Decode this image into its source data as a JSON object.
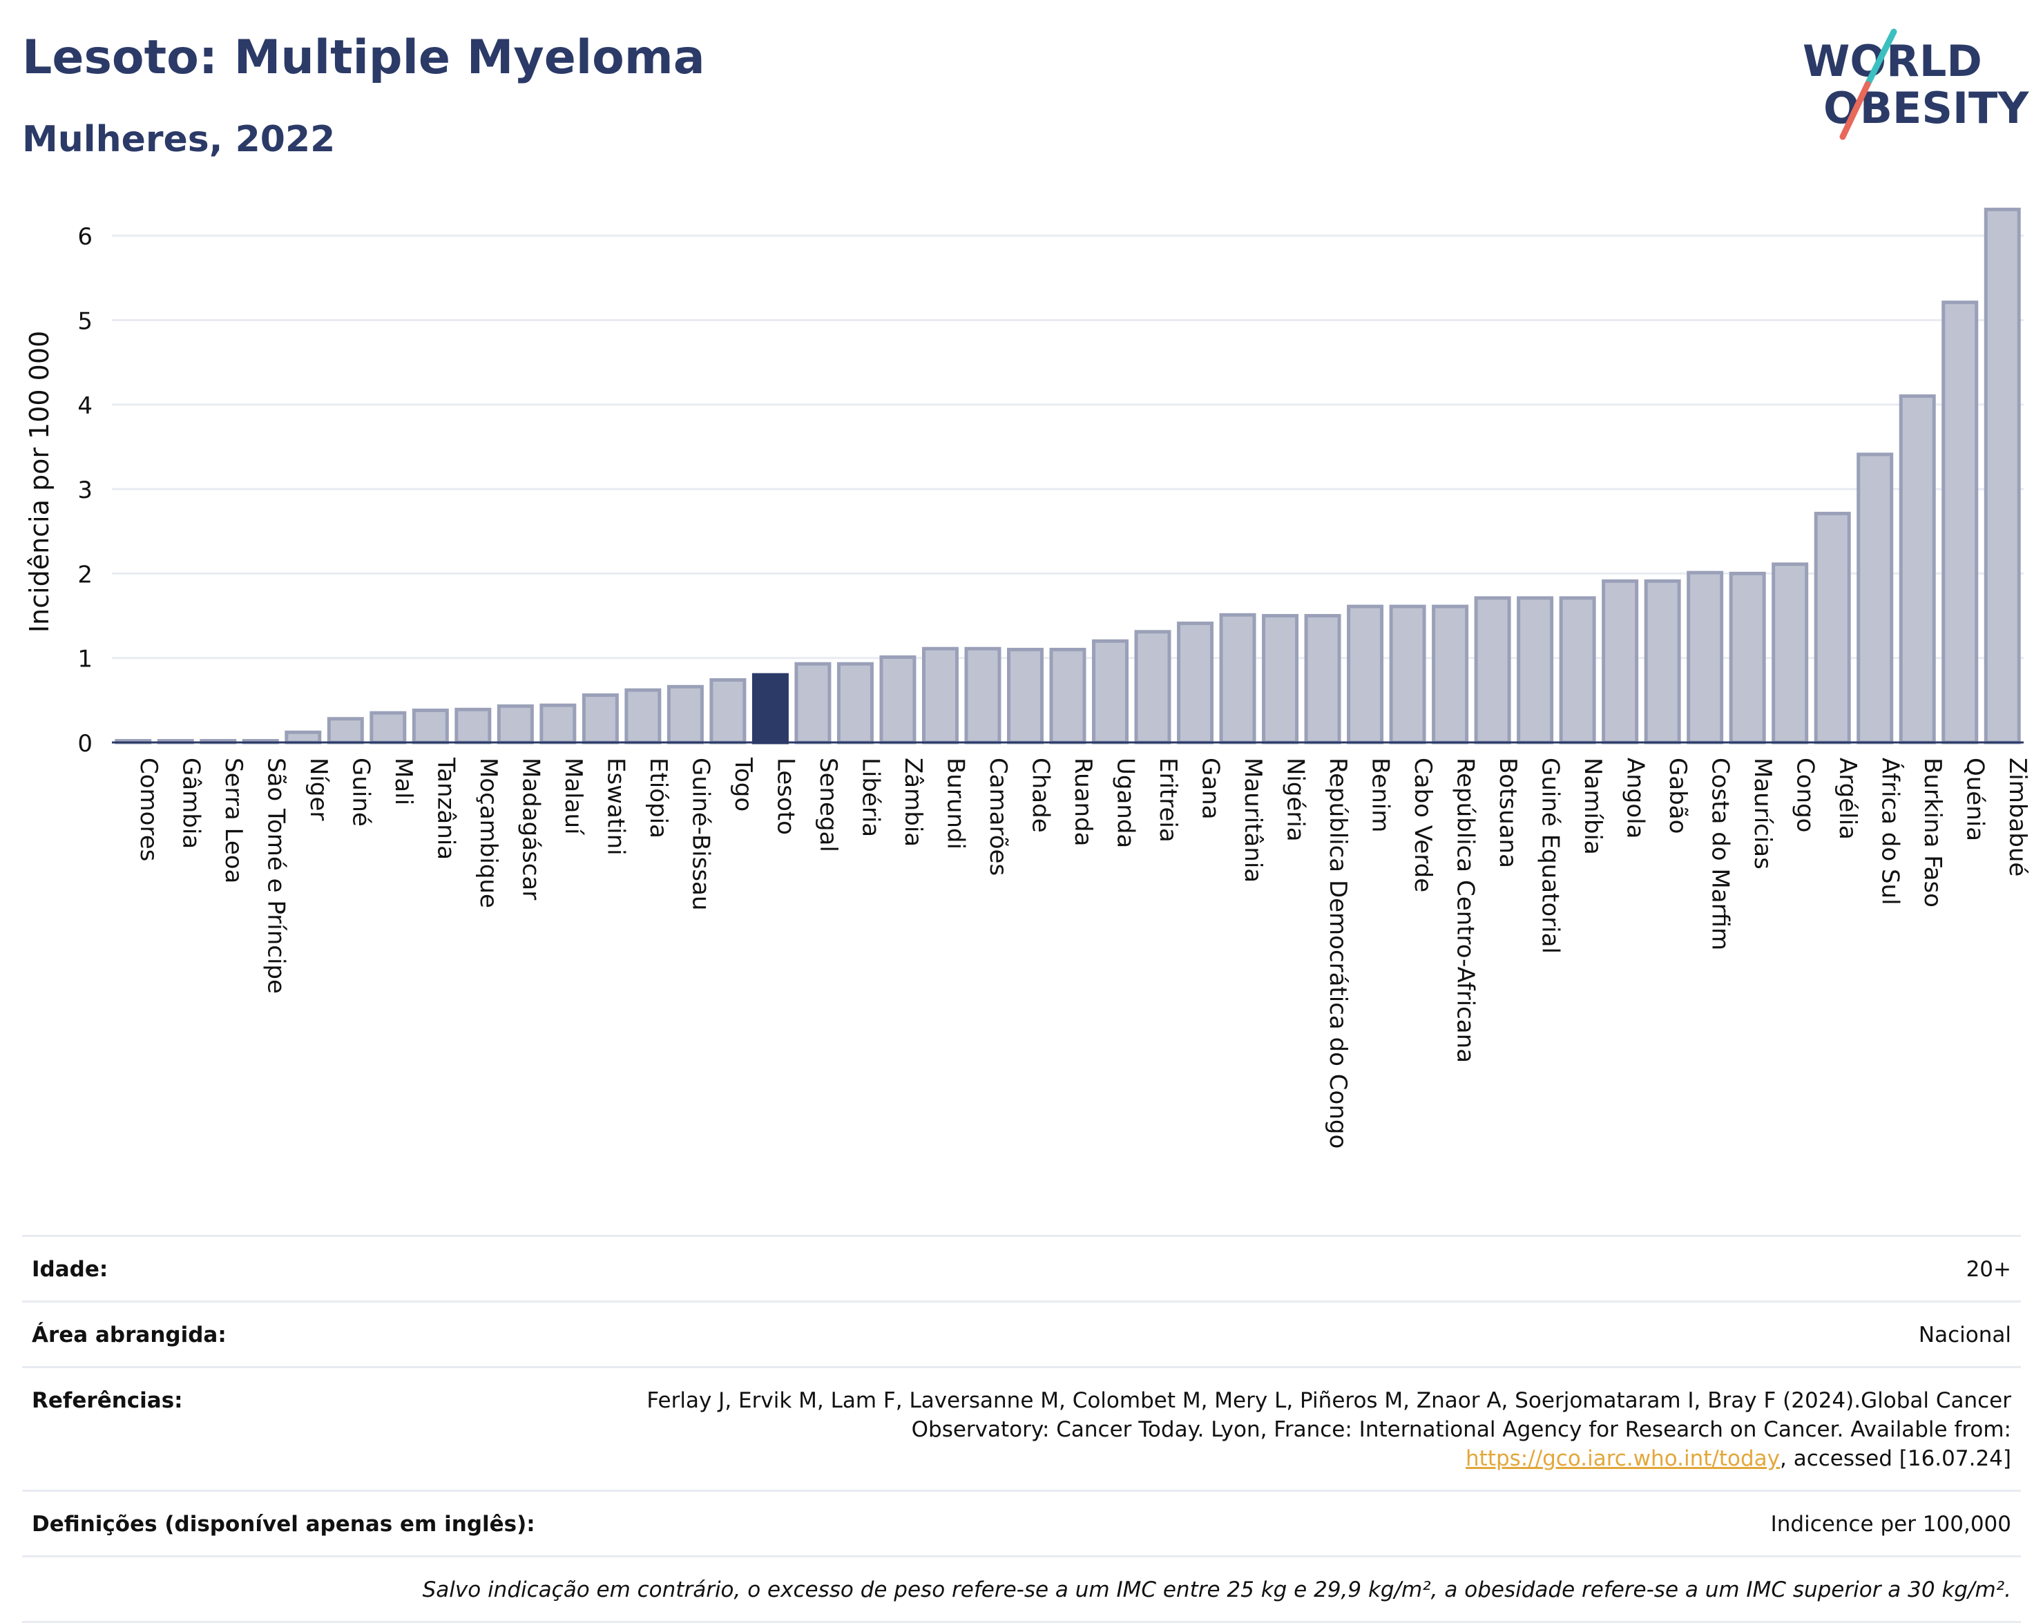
{
  "header": {
    "title": "Lesoto: Multiple Myeloma",
    "subtitle": "Mulheres, 2022",
    "logo_line1": "WORLD",
    "logo_line2": "OBESITY"
  },
  "colors": {
    "bar": "#bfc3d1",
    "bar_border": "#9aa0b8",
    "highlight": "#2b3a67",
    "grid": "#e8ebf1",
    "axis": "#2b3a67",
    "logo_teal": "#3bbfbf",
    "logo_red": "#e8685a"
  },
  "chart_data": {
    "type": "bar",
    "title": "",
    "xlabel": "",
    "ylabel": "Incidência por 100 000",
    "ylim": [
      0,
      6.5
    ],
    "yticks": [
      0,
      1,
      2,
      3,
      4,
      5,
      6
    ],
    "grid": true,
    "highlight": "Lesoto",
    "categories": [
      "Comores",
      "Gâmbia",
      "Serra Leoa",
      "São Tomé e Príncipe",
      "Níger",
      "Guiné",
      "Mali",
      "Tanzânia",
      "Moçambique",
      "Madagáscar",
      "Malauí",
      "Eswatini",
      "Etiópia",
      "Guiné-Bissau",
      "Togo",
      "Lesoto",
      "Senegal",
      "Libéria",
      "Zâmbia",
      "Burundi",
      "Camarões",
      "Chade",
      "Ruanda",
      "Uganda",
      "Eritreia",
      "Gana",
      "Mauritânia",
      "Nigéria",
      "República Democrática do Congo",
      "Benim",
      "Cabo Verde",
      "República Centro-Africana",
      "Botsuana",
      "Guiné Equatorial",
      "Namíbia",
      "Angola",
      "Gabão",
      "Costa do Marfim",
      "Maurícias",
      "Congo",
      "Argélia",
      "África do Sul",
      "Burkina Faso",
      "Quénia",
      "Zimbabué"
    ],
    "values": [
      0.02,
      0.02,
      0.02,
      0.02,
      0.12,
      0.28,
      0.35,
      0.38,
      0.39,
      0.43,
      0.44,
      0.56,
      0.62,
      0.66,
      0.74,
      0.8,
      0.93,
      0.93,
      1.01,
      1.11,
      1.11,
      1.1,
      1.1,
      1.2,
      1.31,
      1.41,
      1.51,
      1.5,
      1.5,
      1.61,
      1.61,
      1.61,
      1.71,
      1.71,
      1.71,
      1.91,
      1.91,
      2.01,
      2.0,
      2.11,
      2.71,
      3.41,
      4.1,
      5.21,
      6.31
    ]
  },
  "meta": {
    "age_label": "Idade:",
    "age_value": "20+",
    "area_label": "Área abrangida:",
    "area_value": "Nacional",
    "ref_label": "Referências:",
    "ref_text_1": "Ferlay J, Ervik M, Lam F, Laversanne M, Colombet M, Mery L, Piñeros M, Znaor A, Soerjomataram I, Bray F (2024).Global Cancer Observatory: Cancer Today. Lyon, France: International Agency for Research on Cancer. Available from: ",
    "ref_link": "https://gco.iarc.who.int/today",
    "ref_text_2": ", accessed [16.07.24]",
    "def_label": "Definições (disponível apenas em inglês):",
    "def_value": "Indicence per 100,000",
    "note": "Salvo indicação em contrário, o excesso de peso refere-se a um IMC entre 25 kg e 29,9 kg/m², a obesidade refere-se a um IMC superior a 30 kg/m²."
  }
}
